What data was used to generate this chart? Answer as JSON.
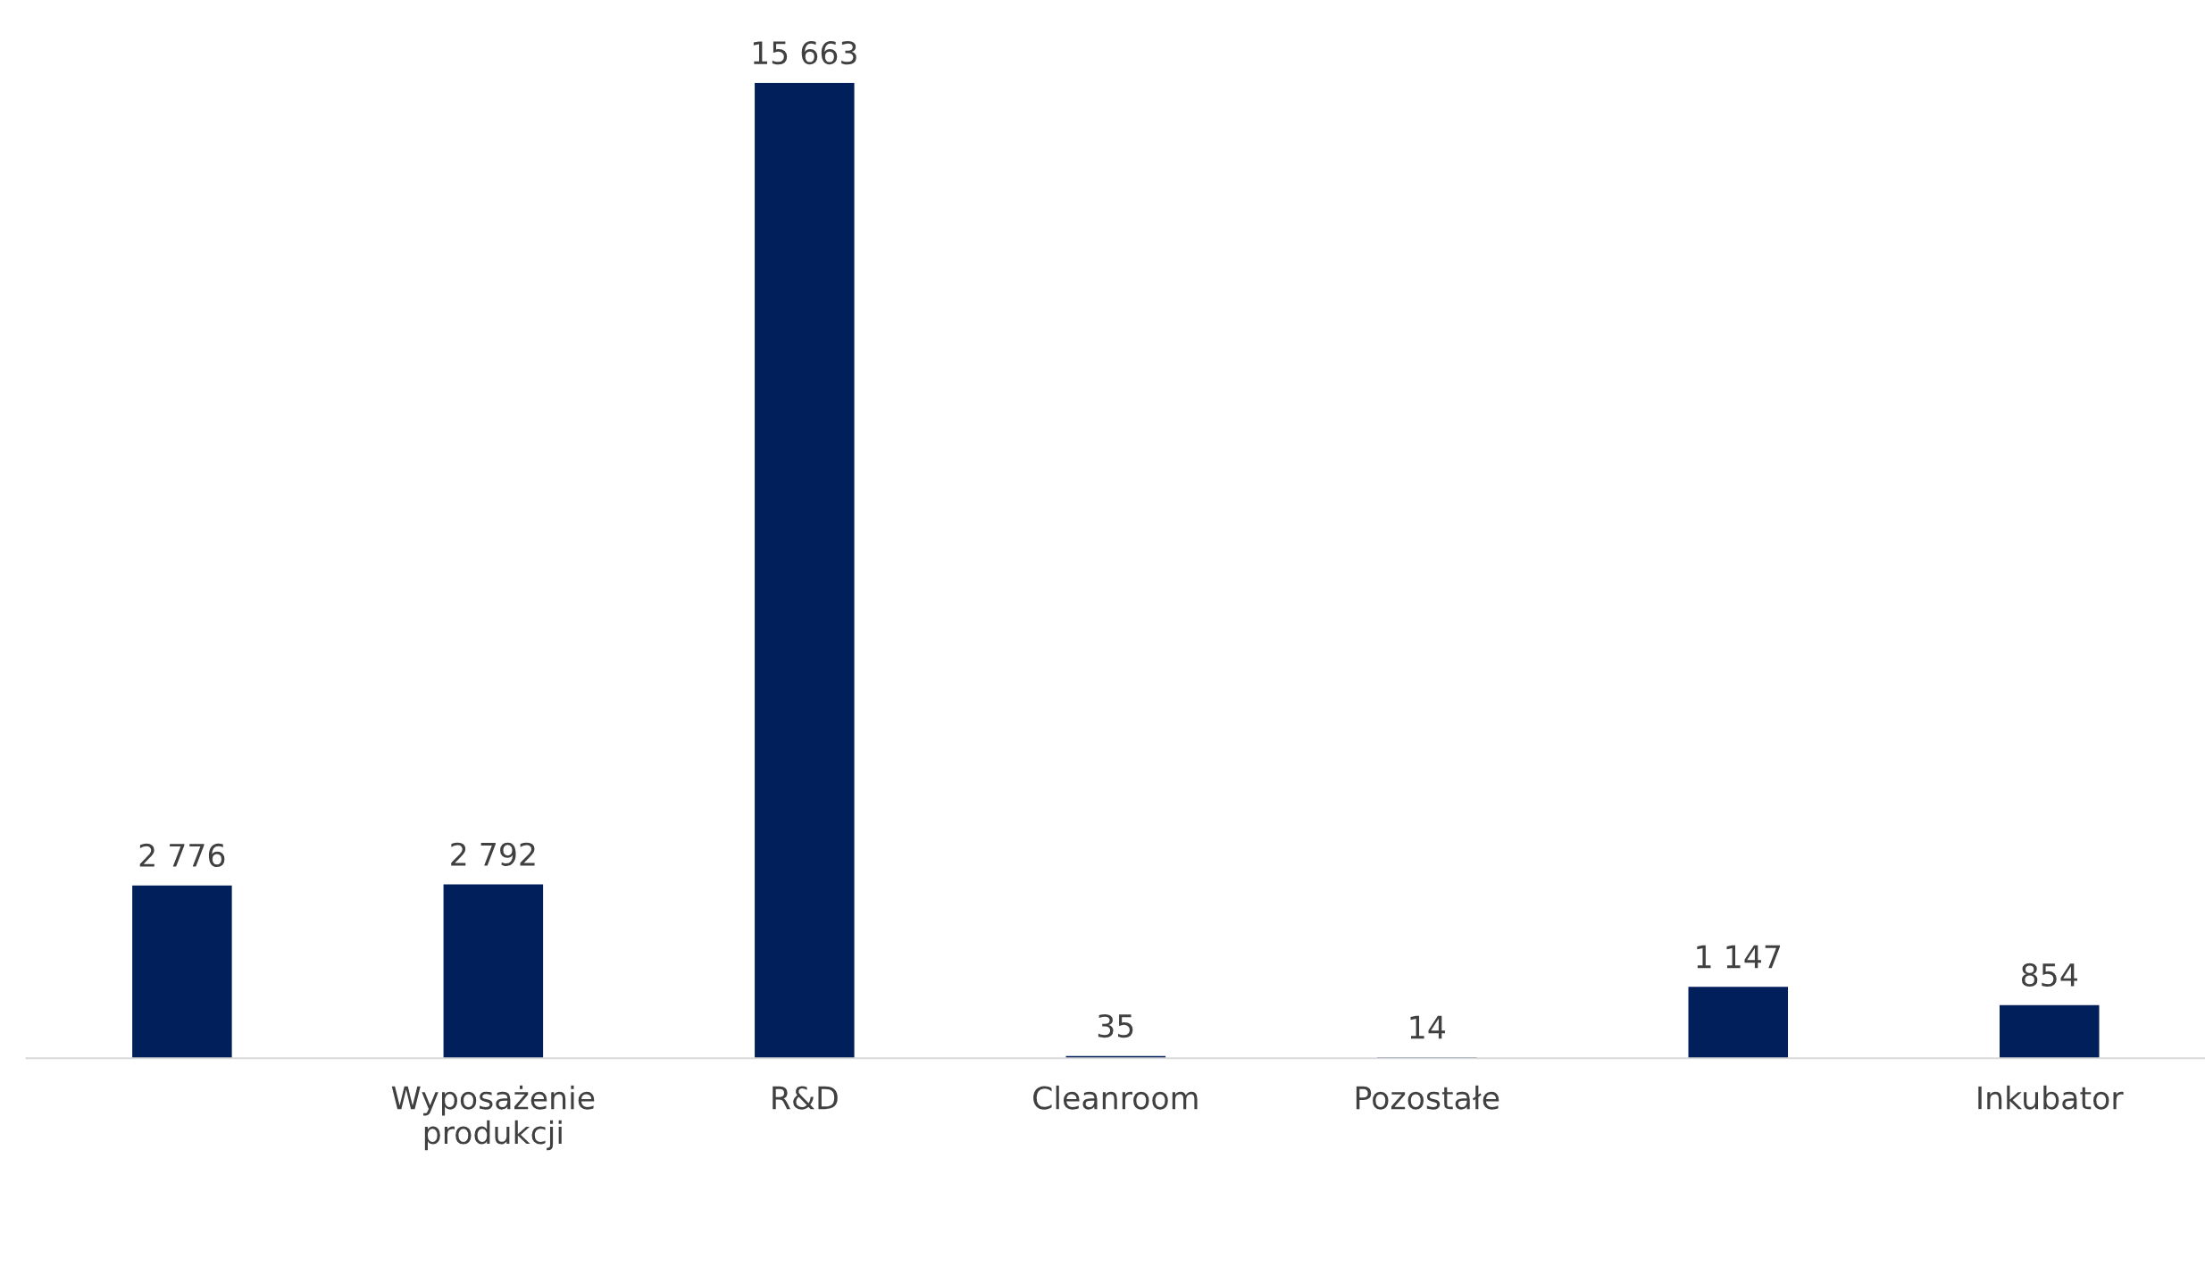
{
  "chart_data": {
    "type": "bar",
    "categories": [
      null,
      "Wyposażenie\nprodukcji",
      "R&D",
      "Cleanroom",
      "Pozostałe",
      null,
      "Inkubator"
    ],
    "values": [
      2776,
      2792,
      15663,
      35,
      14,
      1147,
      854
    ],
    "value_labels": [
      "2 776",
      "2 792",
      "15 663",
      "35",
      "14",
      "1 147",
      "854"
    ],
    "color": "#001f5b",
    "grid": false,
    "legend": false
  }
}
